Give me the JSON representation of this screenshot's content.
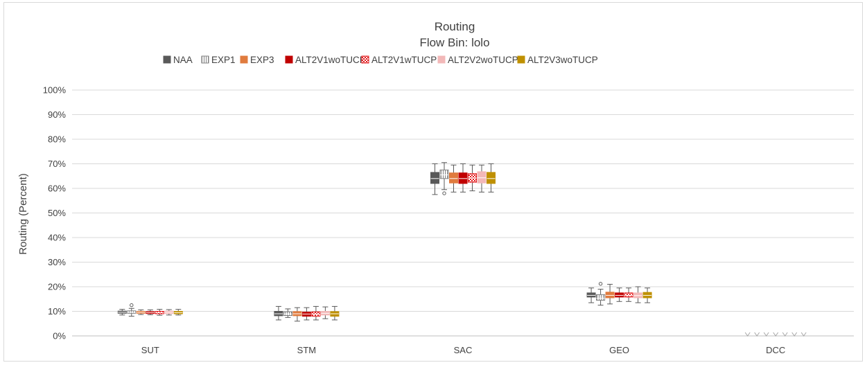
{
  "chart_data": {
    "type": "box",
    "title": "Routing",
    "subtitle": "Flow Bin: lolo",
    "xlabel": "",
    "ylabel": "Routing (Percent)",
    "ylim": [
      0,
      100
    ],
    "y_ticks": [
      "0%",
      "10%",
      "20%",
      "30%",
      "40%",
      "50%",
      "60%",
      "70%",
      "80%",
      "90%",
      "100%"
    ],
    "categories": [
      "SUT",
      "STM",
      "SAC",
      "GEO",
      "DCC"
    ],
    "grid": true,
    "legend_position": "top",
    "series": [
      {
        "name": "NAA",
        "color": "#595959",
        "pattern": "solid",
        "boxes": [
          {
            "min": 8.5,
            "q1": 9.2,
            "median": 9.6,
            "q3": 10.1,
            "max": 10.8,
            "outliers": []
          },
          {
            "min": 6.5,
            "q1": 8.2,
            "median": 9.0,
            "q3": 10.0,
            "max": 12.0,
            "outliers": []
          },
          {
            "min": 57.5,
            "q1": 62.0,
            "median": 64.0,
            "q3": 66.5,
            "max": 70.0,
            "outliers": []
          },
          {
            "min": 13.5,
            "q1": 15.8,
            "median": 16.5,
            "q3": 17.5,
            "max": 19.5,
            "outliers": []
          },
          {
            "min": 0,
            "q1": 0,
            "median": 0,
            "q3": 0,
            "max": 0,
            "outliers": []
          }
        ]
      },
      {
        "name": "EXP1",
        "color": "#ffffff",
        "pattern": "vstripes",
        "boxes": [
          {
            "min": 8.0,
            "q1": 9.2,
            "median": 9.6,
            "q3": 10.2,
            "max": 11.2,
            "outliers": [
              12.5
            ]
          },
          {
            "min": 7.5,
            "q1": 8.3,
            "median": 8.9,
            "q3": 9.8,
            "max": 11.0,
            "outliers": []
          },
          {
            "min": 59.5,
            "q1": 64.0,
            "median": 65.5,
            "q3": 67.5,
            "max": 70.5,
            "outliers": [
              58.0
            ]
          },
          {
            "min": 12.5,
            "q1": 14.5,
            "median": 15.3,
            "q3": 16.8,
            "max": 19.0,
            "outliers": [
              21.2
            ]
          },
          {
            "min": 0,
            "q1": 0,
            "median": 0,
            "q3": 0,
            "max": 0,
            "outliers": []
          }
        ]
      },
      {
        "name": "EXP3",
        "color": "#e07b3e",
        "pattern": "solid",
        "boxes": [
          {
            "min": 8.7,
            "q1": 9.2,
            "median": 9.6,
            "q3": 10.0,
            "max": 10.6,
            "outliers": []
          },
          {
            "min": 6.0,
            "q1": 8.2,
            "median": 9.0,
            "q3": 9.9,
            "max": 11.5,
            "outliers": []
          },
          {
            "min": 58.5,
            "q1": 62.2,
            "median": 64.0,
            "q3": 66.3,
            "max": 69.5,
            "outliers": []
          },
          {
            "min": 13.0,
            "q1": 15.5,
            "median": 16.5,
            "q3": 17.8,
            "max": 21.0,
            "outliers": []
          },
          {
            "min": 0,
            "q1": 0,
            "median": 0,
            "q3": 0,
            "max": 0,
            "outliers": []
          }
        ]
      },
      {
        "name": "ALT2V1woTUCP",
        "color": "#c00000",
        "pattern": "solid",
        "boxes": [
          {
            "min": 8.6,
            "q1": 9.1,
            "median": 9.5,
            "q3": 9.9,
            "max": 10.6,
            "outliers": []
          },
          {
            "min": 6.5,
            "q1": 8.0,
            "median": 8.9,
            "q3": 9.7,
            "max": 11.5,
            "outliers": []
          },
          {
            "min": 58.5,
            "q1": 62.0,
            "median": 64.0,
            "q3": 66.3,
            "max": 70.0,
            "outliers": []
          },
          {
            "min": 14.0,
            "q1": 15.8,
            "median": 16.5,
            "q3": 17.5,
            "max": 19.5,
            "outliers": []
          },
          {
            "min": 0,
            "q1": 0,
            "median": 0,
            "q3": 0,
            "max": 0,
            "outliers": []
          }
        ]
      },
      {
        "name": "ALT2V1wTUCP",
        "color": "#e31a1c",
        "pattern": "checker",
        "boxes": [
          {
            "min": 8.4,
            "q1": 9.0,
            "median": 9.5,
            "q3": 10.0,
            "max": 10.8,
            "outliers": []
          },
          {
            "min": 6.5,
            "q1": 8.0,
            "median": 8.8,
            "q3": 9.8,
            "max": 12.0,
            "outliers": []
          },
          {
            "min": 59.0,
            "q1": 62.5,
            "median": 64.2,
            "q3": 66.0,
            "max": 69.5,
            "outliers": []
          },
          {
            "min": 14.0,
            "q1": 15.8,
            "median": 16.5,
            "q3": 17.5,
            "max": 19.5,
            "outliers": []
          },
          {
            "min": 0,
            "q1": 0,
            "median": 0,
            "q3": 0,
            "max": 0,
            "outliers": []
          }
        ]
      },
      {
        "name": "ALT2V2woTUCP",
        "color": "#f2b8b8",
        "pattern": "solid",
        "boxes": [
          {
            "min": 8.5,
            "q1": 9.1,
            "median": 9.6,
            "q3": 10.1,
            "max": 10.7,
            "outliers": []
          },
          {
            "min": 7.0,
            "q1": 8.5,
            "median": 9.2,
            "q3": 10.0,
            "max": 11.8,
            "outliers": []
          },
          {
            "min": 58.5,
            "q1": 62.2,
            "median": 64.3,
            "q3": 66.8,
            "max": 69.5,
            "outliers": []
          },
          {
            "min": 13.5,
            "q1": 15.5,
            "median": 16.4,
            "q3": 17.5,
            "max": 20.0,
            "outliers": []
          },
          {
            "min": 0,
            "q1": 0,
            "median": 0,
            "q3": 0,
            "max": 0,
            "outliers": []
          }
        ]
      },
      {
        "name": "ALT2V3woTUCP",
        "color": "#bf9000",
        "pattern": "solid",
        "boxes": [
          {
            "min": 8.5,
            "q1": 9.0,
            "median": 9.5,
            "q3": 10.0,
            "max": 10.8,
            "outliers": []
          },
          {
            "min": 6.5,
            "q1": 8.0,
            "median": 9.0,
            "q3": 9.9,
            "max": 12.0,
            "outliers": []
          },
          {
            "min": 58.5,
            "q1": 62.0,
            "median": 64.0,
            "q3": 66.5,
            "max": 70.0,
            "outliers": []
          },
          {
            "min": 13.5,
            "q1": 15.5,
            "median": 16.5,
            "q3": 17.7,
            "max": 19.5,
            "outliers": []
          },
          {
            "min": 0,
            "q1": 0,
            "median": 0,
            "q3": 0,
            "max": 0,
            "outliers": []
          }
        ]
      }
    ]
  }
}
